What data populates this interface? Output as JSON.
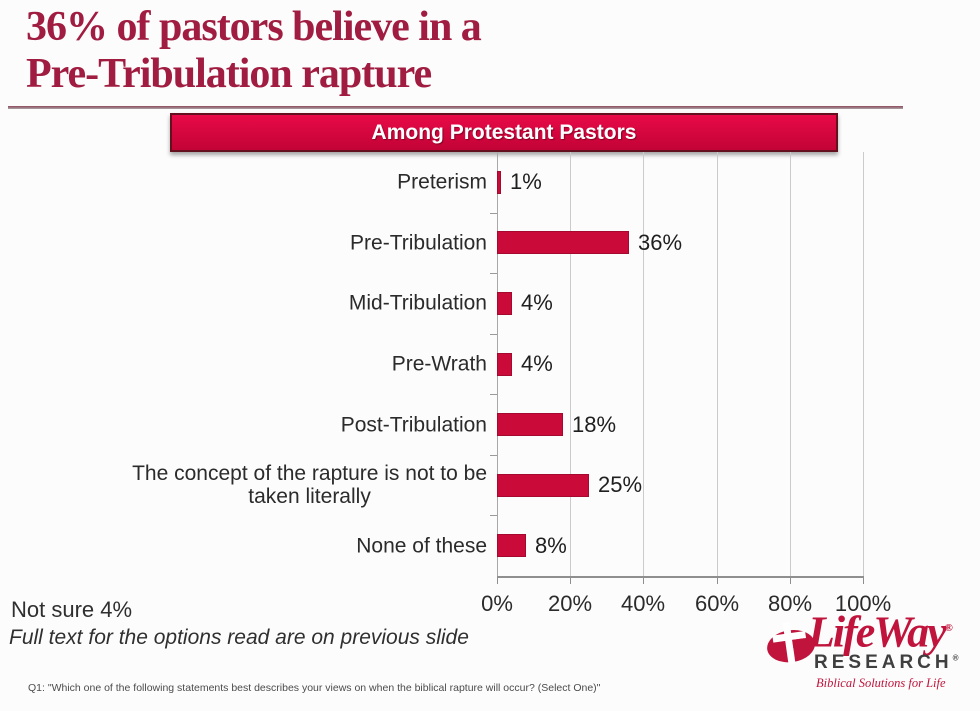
{
  "title": {
    "line1": "36% of pastors believe in a",
    "line2": "Pre-Tribulation rapture"
  },
  "banner": {
    "label": "Among Protestant Pastors"
  },
  "chart_data": {
    "type": "bar",
    "orientation": "horizontal",
    "title": "Among Protestant Pastors",
    "categories": [
      "Preterism",
      "Pre-Tribulation",
      "Mid-Tribulation",
      "Pre-Wrath",
      "Post-Tribulation",
      "The concept of the rapture is not to be\ntaken literally",
      "None of these"
    ],
    "values": [
      1,
      36,
      4,
      4,
      18,
      25,
      8
    ],
    "value_labels": [
      "1%",
      "36%",
      "4%",
      "4%",
      "18%",
      "25%",
      "8%"
    ],
    "x_ticks": [
      {
        "label": "0%",
        "value": 0
      },
      {
        "label": "20%",
        "value": 20
      },
      {
        "label": "40%",
        "value": 40
      },
      {
        "label": "60%",
        "value": 60
      },
      {
        "label": "80%",
        "value": 80
      },
      {
        "label": "100%",
        "value": 100
      }
    ],
    "xlim": [
      0,
      100
    ],
    "grid": true,
    "legend": false,
    "bar_color": "#ca0b39"
  },
  "notes": {
    "not_sure": "Not sure 4%",
    "full_text": "Full text for the options read are on previous slide",
    "footnote": "Q1: \"Which one of the following statements best describes your views on when the biblical rapture will occur? (Select One)\""
  },
  "logo": {
    "name": "LifeWay",
    "reg": "®",
    "sub": "RESEARCH",
    "tagline": "Biblical Solutions for Life"
  },
  "colors": {
    "accent_red": "#ca0b39",
    "bar_border": "#a50930",
    "title_red": "#a01c40",
    "banner_border": "#65101f",
    "grid": "#cbcbcb",
    "axis_zero": "#a8a8a8",
    "axis": "#8f8f8f",
    "text_dark": "#1f1f1f",
    "logo_red": "#c0143c",
    "logo_gray": "#3f3f3f"
  }
}
